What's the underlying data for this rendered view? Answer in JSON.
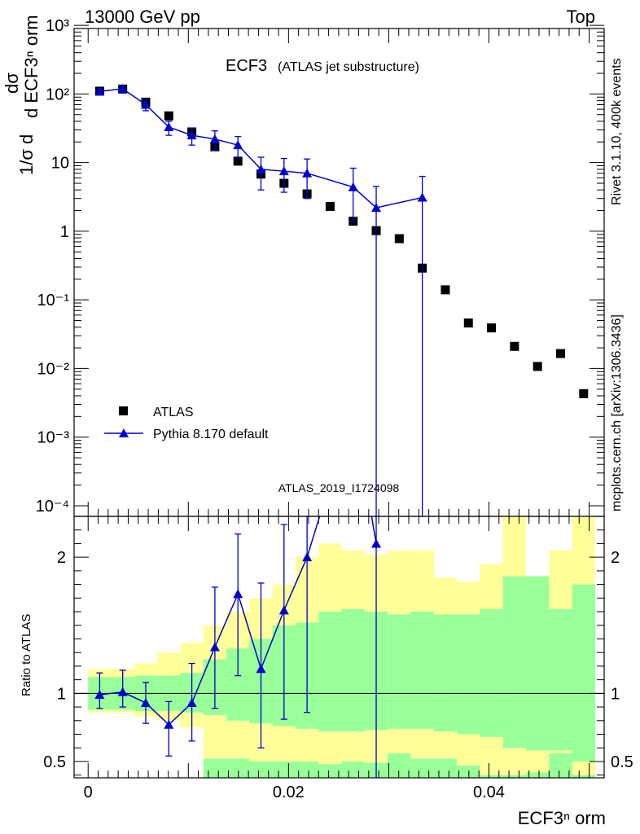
{
  "header": {
    "energy_label": "13000 GeV pp",
    "process_label": "Top"
  },
  "side_labels": {
    "rivet": "Rivet 3.1.10,  400k events",
    "mcplots": "mcplots.cern.ch [arXiv:1306.3436]"
  },
  "plot": {
    "title_main": "ECF3",
    "title_sub": "(ATLAS jet substructure)",
    "analysis_id": "ATLAS_2019_I1724098",
    "ylabel_top": "dσ",
    "ylabel_bottom": "d ECF3ⁿ orm",
    "ylabel_prefix": "1/σ d",
    "ratio_ylabel": "Ratio to ATLAS",
    "xlabel": "ECF3ⁿ orm"
  },
  "legend": {
    "data_label": "ATLAS",
    "mc_label": "Pythia 8.170 default"
  },
  "colors": {
    "mc": "#0000cc",
    "band_outer": "#ffff99",
    "band_inner": "#99ff99",
    "data": "#000000",
    "side_text": "#888888"
  },
  "chart_data": [
    {
      "type": "scatter",
      "yscale": "log",
      "xlim": [
        -0.0014,
        0.0515
      ],
      "ylim": [
        7e-05,
        900
      ],
      "x_ticks": [
        0,
        0.02,
        0.04
      ],
      "y_tick_labels": [
        "10⁻⁴",
        "10⁻³",
        "10⁻²",
        "10⁻¹",
        "1",
        "10",
        "10²",
        "10³"
      ],
      "series": [
        {
          "name": "ATLAS",
          "x": [
            0.00115,
            0.00345,
            0.00575,
            0.00805,
            0.01035,
            0.01265,
            0.01495,
            0.01725,
            0.01955,
            0.02185,
            0.02415,
            0.02645,
            0.02875,
            0.03105,
            0.03335,
            0.03565,
            0.03795,
            0.04025,
            0.04255,
            0.04485,
            0.04715,
            0.04945
          ],
          "y": [
            110,
            118,
            76,
            48,
            28,
            17,
            10.5,
            6.8,
            5.0,
            3.5,
            2.3,
            1.4,
            1.02,
            0.78,
            0.29,
            0.14,
            0.046,
            0.039,
            0.021,
            0.0107,
            0.0165,
            0.0043
          ]
        },
        {
          "name": "Pythia 8.170 default",
          "x": [
            0.00115,
            0.00345,
            0.00575,
            0.00805,
            0.01035,
            0.01265,
            0.01495,
            0.01725,
            0.01955,
            0.02185,
            0.02645,
            0.02875,
            0.03335
          ],
          "y": [
            109,
            119,
            70,
            33,
            25,
            22,
            18,
            8.0,
            7.5,
            7.0,
            4.4,
            2.2,
            3.1
          ],
          "y_low": [
            100,
            110,
            57,
            25,
            18,
            15,
            12,
            4.0,
            3.7,
            3.0,
            1.4,
            1e-05,
            1e-05
          ],
          "y_high": [
            120,
            128,
            82,
            40,
            32,
            29,
            24,
            12,
            11.5,
            11.3,
            8.3,
            4.5,
            6.3
          ]
        }
      ]
    },
    {
      "type": "line",
      "title": "Ratio to ATLAS",
      "xlim": [
        -0.0014,
        0.0515
      ],
      "ylim": [
        0.38,
        2.3
      ],
      "y_ticks": [
        0.5,
        1,
        2
      ],
      "band_edges": [
        0,
        0.0023,
        0.0046,
        0.0069,
        0.0092,
        0.0115,
        0.0138,
        0.0161,
        0.0184,
        0.0207,
        0.023,
        0.0253,
        0.0276,
        0.0299,
        0.0322,
        0.0345,
        0.0368,
        0.0391,
        0.0414,
        0.0437,
        0.046,
        0.0483,
        0.0506
      ],
      "inner_band": {
        "low": [
          0.88,
          0.88,
          0.87,
          0.87,
          0.86,
          0.84,
          0.8,
          0.78,
          0.76,
          0.74,
          0.72,
          0.72,
          0.73,
          0.74,
          0.74,
          0.72,
          0.7,
          0.68,
          0.6,
          0.58,
          0.58,
          0.5
        ],
        "high": [
          1.12,
          1.12,
          1.13,
          1.13,
          1.15,
          1.25,
          1.33,
          1.4,
          1.5,
          1.52,
          1.6,
          1.62,
          1.6,
          1.58,
          1.6,
          1.58,
          1.58,
          1.62,
          1.86,
          1.86,
          1.62,
          1.8
        ]
      },
      "outer_band": {
        "low": [
          0.86,
          0.86,
          0.83,
          0.8,
          0.75,
          0.34,
          0.34,
          0.34,
          0.34,
          0.34,
          0.34,
          0.34,
          0.34,
          0.34,
          0.34,
          0.34,
          0.34,
          0.34,
          0.34,
          0.34,
          0.34,
          0.34
        ],
        "high": [
          1.18,
          1.18,
          1.22,
          1.3,
          1.37,
          1.5,
          1.6,
          1.7,
          1.8,
          2.0,
          2.1,
          2.05,
          2.02,
          2.05,
          2.05,
          1.85,
          1.82,
          1.95,
          2.3,
          1.75,
          2.05,
          2.3
        ]
      },
      "outer_band_gaps": {
        "low_cut": [
          0,
          0,
          0,
          0,
          0,
          0.52,
          0.52,
          0.5,
          0.5,
          0.5,
          0.48,
          0.5,
          0.49,
          0.56,
          0.52,
          0.52,
          0.47,
          0.4,
          0.4,
          0.42,
          0.56,
          0.4
        ]
      },
      "series": [
        {
          "name": "Pythia 8.170 default",
          "x": [
            0.00115,
            0.00345,
            0.00575,
            0.00805,
            0.01035,
            0.01265,
            0.01495,
            0.01725,
            0.01955,
            0.02185,
            0.02645,
            0.02875
          ],
          "y": [
            0.99,
            1.01,
            0.93,
            0.77,
            0.93,
            1.34,
            1.73,
            1.18,
            1.61,
            2.0,
            3.1,
            2.1
          ],
          "y_low": [
            0.89,
            0.9,
            0.78,
            0.54,
            0.65,
            0.89,
            1.13,
            0.6,
            0.81,
            0.86,
            1.0,
            0.0
          ],
          "y_high": [
            1.15,
            1.17,
            1.08,
            0.94,
            1.22,
            1.78,
            2.17,
            1.81,
            2.24,
            2.6,
            6.0,
            6.0
          ]
        }
      ]
    }
  ]
}
